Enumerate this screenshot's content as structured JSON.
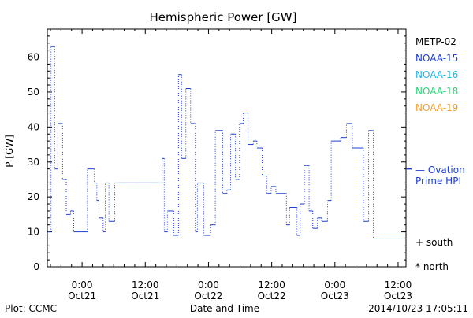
{
  "chart_data": {
    "type": "line",
    "title": "Hemispheric Power [GW]",
    "ylabel": "P [GW]",
    "xlabel": "Date and Time",
    "ylim": [
      0,
      68
    ],
    "yticks": [
      0,
      10,
      20,
      30,
      40,
      50,
      60
    ],
    "xlim_hours": [
      -6.6,
      61.5
    ],
    "xtick_labels": [
      {
        "time": "0:00",
        "date": "Oct21"
      },
      {
        "time": "12:00",
        "date": "Oct21"
      },
      {
        "time": "0:00",
        "date": "Oct22"
      },
      {
        "time": "12:00",
        "date": "Oct22"
      },
      {
        "time": "0:00",
        "date": "Oct23"
      },
      {
        "time": "12:00",
        "date": "Oct23"
      }
    ],
    "legend_placement": "right",
    "legend": [
      {
        "name": "METP-02",
        "color": "#000000"
      },
      {
        "name": "NOAA-15",
        "color": "#1f3fcf"
      },
      {
        "name": "NOAA-16",
        "color": "#1fb4e6"
      },
      {
        "name": "NOAA-18",
        "color": "#2ed47a"
      },
      {
        "name": "NOAA-19",
        "color": "#f0a030"
      }
    ],
    "ovation": {
      "label_line1": "— Ovation",
      "label_line2": "Prime HPI",
      "value": 28,
      "color": "#1f3fcf"
    },
    "markers": {
      "south": "+ south",
      "north": "* north"
    },
    "series": [
      {
        "name": "NOAA-15",
        "color": "#1f3fcf",
        "x": [
          -6.5,
          -5.9,
          -5.2,
          -4.6,
          -3.7,
          -3.0,
          -2.2,
          -1.6,
          -0.2,
          1.0,
          2.3,
          2.8,
          3.2,
          4.0,
          4.4,
          5.1,
          6.2,
          7.0,
          9.6,
          14.6,
          15.2,
          15.6,
          16.2,
          17.4,
          18.3,
          18.9,
          19.7,
          20.6,
          21.5,
          21.9,
          23.1,
          23.8,
          24.4,
          25.3,
          26.7,
          27.5,
          28.2,
          29.1,
          29.9,
          30.6,
          31.5,
          32.5,
          33.2,
          34.2,
          35.1,
          35.9,
          36.8,
          37.8,
          38.8,
          39.4,
          40.8,
          41.4,
          42.2,
          43.1,
          43.8,
          44.7,
          45.5,
          46.6,
          47.3,
          48.2,
          49.1,
          50.2,
          51.3,
          52.3,
          53.4,
          54.4,
          55.3,
          56.3,
          57.4,
          58.3,
          59.7,
          61.0
        ],
        "y": [
          10,
          63,
          28,
          41,
          25,
          15,
          16,
          10,
          10,
          28,
          24,
          19,
          14,
          10,
          24,
          13,
          24,
          24,
          24,
          24,
          31,
          10,
          16,
          9,
          55,
          31,
          51,
          41,
          10,
          24,
          9,
          9,
          12,
          39,
          21,
          22,
          38,
          25,
          41,
          44,
          35,
          36,
          34,
          26,
          21,
          23,
          21,
          21,
          12,
          17,
          9,
          18,
          29,
          16,
          11,
          14,
          13,
          19,
          36,
          36,
          37,
          41,
          34,
          34,
          13,
          39,
          8,
          8,
          8,
          8,
          8,
          8
        ]
      }
    ]
  },
  "footer": {
    "left": "Plot: CCMC",
    "right": "2014/10/23 17:05:11"
  }
}
